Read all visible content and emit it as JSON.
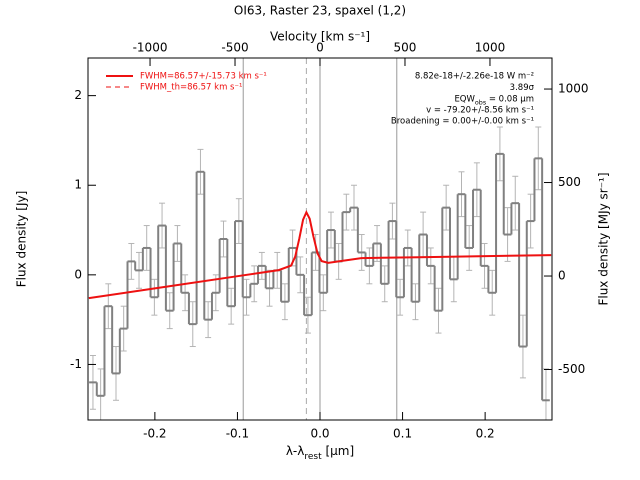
{
  "chart_data": {
    "type": "spectrum",
    "title": "OI63, Raster 23, spaxel (1,2)",
    "x_label": [
      "λ-λ",
      "rest",
      " [μm]"
    ],
    "y_label": "Flux density [Jy]",
    "y2_label": "Flux density [MJy sr⁻¹]",
    "top_axis": {
      "label": "Velocity [km s⁻¹]",
      "xlim": [
        -1365,
        1365
      ],
      "xticks": [
        -1000,
        -500,
        0,
        500,
        1000
      ]
    },
    "xlim": [
      -0.281,
      0.281
    ],
    "xticks": [
      -0.2,
      -0.1,
      {
        "value": 0,
        "label": "0.0"
      },
      0.1,
      0.2
    ],
    "ylim": [
      -1.62,
      2.42
    ],
    "yticks": [
      -1,
      0,
      1,
      2
    ],
    "y2lim": [
      -770,
      1166
    ],
    "y2ticks": [
      -500,
      0,
      500,
      1000
    ],
    "reference_lines": [
      -0.093,
      0,
      0.093
    ],
    "line_center": -0.0165,
    "data_color": "#808080",
    "error_color": "#b4b4b4",
    "fit_color": "#ee1111",
    "x": [
      -0.275,
      -0.2657,
      -0.2564,
      -0.2471,
      -0.2378,
      -0.2285,
      -0.2192,
      -0.2099,
      -0.2006,
      -0.1913,
      -0.182,
      -0.1727,
      -0.1634,
      -0.1541,
      -0.1448,
      -0.1355,
      -0.1262,
      -0.1169,
      -0.1076,
      -0.0983,
      -0.089,
      -0.0797,
      -0.0704,
      -0.0611,
      -0.0518,
      -0.0425,
      -0.0332,
      -0.0239,
      -0.0146,
      -0.0053,
      0.004,
      0.0133,
      0.0226,
      0.0319,
      0.0412,
      0.0505,
      0.0598,
      0.0691,
      0.0784,
      0.0877,
      0.097,
      0.1063,
      0.1156,
      0.1249,
      0.1342,
      0.1435,
      0.1528,
      0.1621,
      0.1714,
      0.1807,
      0.19,
      0.1993,
      0.2086,
      0.2179,
      0.2272,
      0.2365,
      0.2458,
      0.2551,
      0.2644,
      0.2737
    ],
    "values": [
      -1.2,
      -1.35,
      -0.35,
      -1.1,
      -0.6,
      0.15,
      0.05,
      0.3,
      -0.25,
      0.55,
      -0.4,
      0.35,
      -0.2,
      -0.55,
      1.15,
      -0.5,
      -0.2,
      0.4,
      -0.35,
      0.6,
      -0.25,
      -0.1,
      0.1,
      -0.15,
      0.05,
      -0.3,
      0.3,
      0.0,
      -0.45,
      0.25,
      -0.2,
      0.5,
      0.15,
      0.7,
      0.75,
      0.25,
      0.1,
      0.35,
      -0.1,
      0.6,
      -0.25,
      0.3,
      -0.3,
      0.45,
      0.1,
      -0.4,
      0.75,
      -0.05,
      0.9,
      0.3,
      0.95,
      0.1,
      -0.2,
      1.35,
      0.45,
      0.8,
      -0.8,
      0.6,
      1.3,
      -1.4
    ],
    "errors": [
      0.3,
      0.3,
      0.25,
      0.3,
      0.25,
      0.2,
      0.2,
      0.25,
      0.2,
      0.25,
      0.2,
      0.2,
      0.2,
      0.25,
      0.25,
      0.2,
      0.2,
      0.2,
      0.2,
      0.25,
      0.2,
      0.2,
      0.15,
      0.2,
      0.2,
      0.2,
      0.2,
      0.2,
      0.2,
      0.2,
      0.2,
      0.2,
      0.2,
      0.2,
      0.25,
      0.2,
      0.2,
      0.2,
      0.2,
      0.2,
      0.2,
      0.2,
      0.2,
      0.25,
      0.2,
      0.25,
      0.25,
      0.25,
      0.25,
      0.25,
      0.3,
      0.25,
      0.25,
      0.3,
      0.3,
      0.3,
      0.35,
      0.3,
      0.35,
      0.35
    ],
    "fit": {
      "name": "FWHM=86.57+/-15.73 km s⁻¹",
      "x": [
        -0.28,
        -0.2,
        -0.1,
        -0.05,
        -0.035,
        -0.03,
        -0.025,
        -0.0205,
        -0.0165,
        -0.0125,
        -0.008,
        -0.003,
        0.002,
        0.01,
        0.05,
        0.12,
        0.28
      ],
      "values": [
        -0.26,
        -0.151,
        -0.015,
        0.053,
        0.104,
        0.204,
        0.408,
        0.615,
        0.698,
        0.626,
        0.43,
        0.24,
        0.153,
        0.134,
        0.187,
        0.197,
        0.22
      ]
    },
    "fit_th_label": "FWHM_th=86.57 km s⁻¹",
    "annotations": [
      "8.82e-18+/-2.26e-18 W m⁻²",
      "3.89σ",
      [
        "EQW",
        "obs",
        " = 0.08 μm"
      ],
      "v = -79.20+/-8.56 km s⁻¹",
      "Broadening = 0.00+/-0.00 km s⁻¹"
    ]
  }
}
